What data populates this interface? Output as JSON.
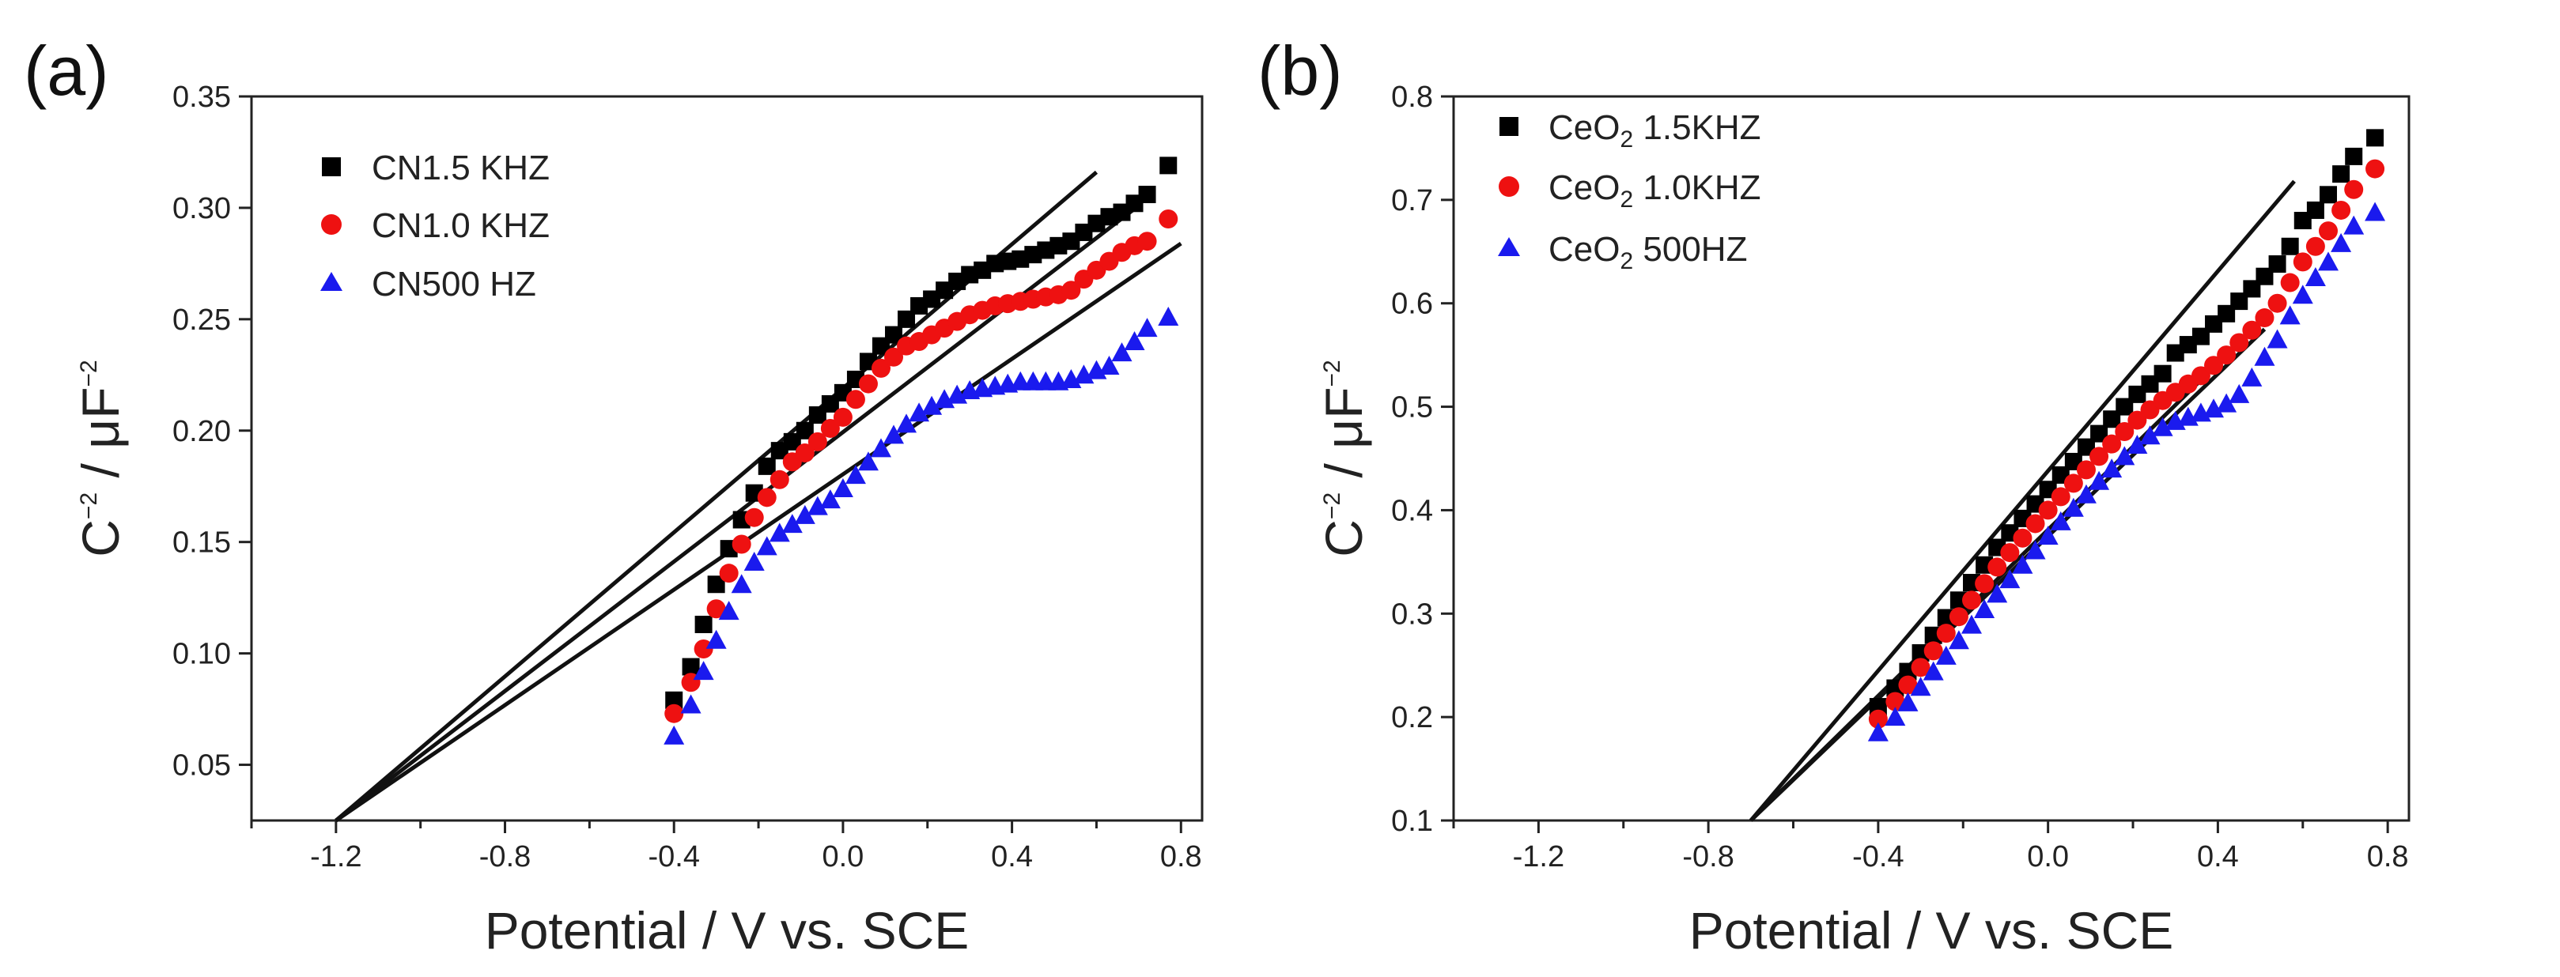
{
  "chart_data": [
    {
      "type": "scatter",
      "panel_label": "(a)",
      "xlabel": "Potential / V vs. SCE",
      "ylabel_main": "C",
      "ylabel_sup": "−2",
      "ylabel_unit": " / μF",
      "ylabel_unit_sup": "−2",
      "xlim": [
        -1.4,
        0.85
      ],
      "ylim": [
        0.025,
        0.35
      ],
      "xticks": [
        -1.2,
        -0.8,
        -0.4,
        0.0,
        0.4,
        0.8
      ],
      "xtick_labels": [
        "-1.2",
        "-0.8",
        "-0.4",
        "0.0",
        "0.4",
        "0.8"
      ],
      "yticks": [
        0.05,
        0.1,
        0.15,
        0.2,
        0.25,
        0.3,
        0.35
      ],
      "ytick_labels": [
        "0.05",
        "0.10",
        "0.15",
        "0.20",
        "0.25",
        "0.30",
        "0.35"
      ],
      "legend_position": "top-left",
      "series": [
        {
          "name": "CN1.5 KHZ",
          "marker": "square",
          "color": "#000000",
          "x": [
            -0.4,
            -0.36,
            -0.33,
            -0.3,
            -0.27,
            -0.24,
            -0.21,
            -0.18,
            -0.15,
            -0.12,
            -0.09,
            -0.06,
            -0.03,
            0.0,
            0.03,
            0.06,
            0.09,
            0.12,
            0.15,
            0.18,
            0.21,
            0.24,
            0.27,
            0.3,
            0.33,
            0.36,
            0.39,
            0.42,
            0.45,
            0.48,
            0.51,
            0.54,
            0.57,
            0.6,
            0.63,
            0.66,
            0.69,
            0.72,
            0.77
          ],
          "y": [
            0.079,
            0.094,
            0.113,
            0.131,
            0.147,
            0.16,
            0.172,
            0.184,
            0.191,
            0.195,
            0.2,
            0.207,
            0.212,
            0.217,
            0.223,
            0.231,
            0.238,
            0.243,
            0.25,
            0.256,
            0.259,
            0.263,
            0.267,
            0.27,
            0.272,
            0.275,
            0.276,
            0.277,
            0.279,
            0.281,
            0.283,
            0.285,
            0.289,
            0.293,
            0.296,
            0.298,
            0.302,
            0.306,
            0.319
          ]
        },
        {
          "name": "CN1.0 KHZ",
          "marker": "circle",
          "color": "#ee1111",
          "x": [
            -0.4,
            -0.36,
            -0.33,
            -0.3,
            -0.27,
            -0.24,
            -0.21,
            -0.18,
            -0.15,
            -0.12,
            -0.09,
            -0.06,
            -0.03,
            0.0,
            0.03,
            0.06,
            0.09,
            0.12,
            0.15,
            0.18,
            0.21,
            0.24,
            0.27,
            0.3,
            0.33,
            0.36,
            0.39,
            0.42,
            0.45,
            0.48,
            0.51,
            0.54,
            0.57,
            0.6,
            0.63,
            0.66,
            0.69,
            0.72,
            0.77
          ],
          "y": [
            0.073,
            0.087,
            0.102,
            0.12,
            0.136,
            0.149,
            0.161,
            0.17,
            0.178,
            0.186,
            0.19,
            0.195,
            0.201,
            0.206,
            0.214,
            0.221,
            0.228,
            0.233,
            0.238,
            0.24,
            0.243,
            0.246,
            0.249,
            0.252,
            0.254,
            0.256,
            0.257,
            0.258,
            0.259,
            0.26,
            0.261,
            0.263,
            0.268,
            0.272,
            0.276,
            0.28,
            0.283,
            0.285,
            0.295
          ]
        },
        {
          "name": "CN500 HZ",
          "marker": "triangle",
          "color": "#1a1aee",
          "x": [
            -0.4,
            -0.36,
            -0.33,
            -0.3,
            -0.27,
            -0.24,
            -0.21,
            -0.18,
            -0.15,
            -0.12,
            -0.09,
            -0.06,
            -0.03,
            0.0,
            0.03,
            0.06,
            0.09,
            0.12,
            0.15,
            0.18,
            0.21,
            0.24,
            0.27,
            0.3,
            0.33,
            0.36,
            0.39,
            0.42,
            0.45,
            0.48,
            0.51,
            0.54,
            0.57,
            0.6,
            0.63,
            0.66,
            0.69,
            0.72,
            0.77
          ],
          "y": [
            0.063,
            0.077,
            0.092,
            0.106,
            0.119,
            0.131,
            0.141,
            0.148,
            0.154,
            0.158,
            0.162,
            0.166,
            0.169,
            0.174,
            0.18,
            0.186,
            0.192,
            0.198,
            0.203,
            0.208,
            0.211,
            0.214,
            0.216,
            0.218,
            0.219,
            0.22,
            0.221,
            0.222,
            0.222,
            0.222,
            0.222,
            0.223,
            0.225,
            0.227,
            0.229,
            0.235,
            0.24,
            0.246,
            0.251
          ]
        }
      ],
      "fit_lines": [
        {
          "x": [
            -1.2,
            0.6
          ],
          "y": [
            0.025,
            0.316
          ]
        },
        {
          "x": [
            -1.2,
            0.7
          ],
          "y": [
            0.025,
            0.301
          ]
        },
        {
          "x": [
            -1.2,
            0.8
          ],
          "y": [
            0.025,
            0.284
          ]
        }
      ]
    },
    {
      "type": "scatter",
      "panel_label": "(b)",
      "xlabel": "Potential / V vs. SCE",
      "ylabel_main": "C",
      "ylabel_sup": "−2",
      "ylabel_unit": " / μF",
      "ylabel_unit_sup": "−2",
      "xlim": [
        -1.4,
        0.85
      ],
      "ylim": [
        0.1,
        0.8
      ],
      "xticks": [
        -1.2,
        -0.8,
        -0.4,
        0.0,
        0.4,
        0.8
      ],
      "xtick_labels": [
        "-1.2",
        "-0.8",
        "-0.4",
        "0.0",
        "0.4",
        "0.8"
      ],
      "yticks": [
        0.1,
        0.2,
        0.3,
        0.4,
        0.5,
        0.6,
        0.7,
        0.8
      ],
      "ytick_labels": [
        "0.1",
        "0.2",
        "0.3",
        "0.4",
        "0.5",
        "0.6",
        "0.7",
        "0.8"
      ],
      "legend_position": "top-left",
      "series": [
        {
          "name_main": "CeO",
          "name_sub": "2",
          "name_rest": " 1.5KHZ",
          "marker": "square",
          "color": "#000000",
          "x": [
            -0.4,
            -0.36,
            -0.33,
            -0.3,
            -0.27,
            -0.24,
            -0.21,
            -0.18,
            -0.15,
            -0.12,
            -0.09,
            -0.06,
            -0.03,
            0.0,
            0.03,
            0.06,
            0.09,
            0.12,
            0.15,
            0.18,
            0.21,
            0.24,
            0.27,
            0.3,
            0.33,
            0.36,
            0.39,
            0.42,
            0.45,
            0.48,
            0.51,
            0.54,
            0.57,
            0.6,
            0.63,
            0.66,
            0.69,
            0.72,
            0.77
          ],
          "y": [
            0.21,
            0.228,
            0.244,
            0.262,
            0.279,
            0.296,
            0.313,
            0.33,
            0.347,
            0.364,
            0.378,
            0.392,
            0.406,
            0.42,
            0.434,
            0.447,
            0.461,
            0.474,
            0.488,
            0.5,
            0.512,
            0.522,
            0.532,
            0.552,
            0.56,
            0.568,
            0.58,
            0.59,
            0.602,
            0.614,
            0.626,
            0.638,
            0.655,
            0.68,
            0.69,
            0.705,
            0.725,
            0.742,
            0.76
          ]
        },
        {
          "name_main": "CeO",
          "name_sub": "2",
          "name_rest": " 1.0KHZ",
          "marker": "circle",
          "color": "#ee1111",
          "x": [
            -0.4,
            -0.36,
            -0.33,
            -0.3,
            -0.27,
            -0.24,
            -0.21,
            -0.18,
            -0.15,
            -0.12,
            -0.09,
            -0.06,
            -0.03,
            0.0,
            0.03,
            0.06,
            0.09,
            0.12,
            0.15,
            0.18,
            0.21,
            0.24,
            0.27,
            0.3,
            0.33,
            0.36,
            0.39,
            0.42,
            0.45,
            0.48,
            0.51,
            0.54,
            0.57,
            0.6,
            0.63,
            0.66,
            0.69,
            0.72,
            0.77
          ],
          "y": [
            0.198,
            0.215,
            0.231,
            0.248,
            0.264,
            0.281,
            0.297,
            0.313,
            0.329,
            0.345,
            0.359,
            0.373,
            0.387,
            0.4,
            0.413,
            0.426,
            0.439,
            0.452,
            0.464,
            0.476,
            0.487,
            0.497,
            0.506,
            0.514,
            0.522,
            0.53,
            0.54,
            0.55,
            0.562,
            0.574,
            0.586,
            0.6,
            0.62,
            0.64,
            0.655,
            0.67,
            0.69,
            0.71,
            0.73
          ]
        },
        {
          "name_main": "CeO",
          "name_sub": "2",
          "name_rest": " 500HZ",
          "marker": "triangle",
          "color": "#1a1aee",
          "x": [
            -0.4,
            -0.36,
            -0.33,
            -0.3,
            -0.27,
            -0.24,
            -0.21,
            -0.18,
            -0.15,
            -0.12,
            -0.09,
            -0.06,
            -0.03,
            0.0,
            0.03,
            0.06,
            0.09,
            0.12,
            0.15,
            0.18,
            0.21,
            0.24,
            0.27,
            0.3,
            0.33,
            0.36,
            0.39,
            0.42,
            0.45,
            0.48,
            0.51,
            0.54,
            0.57,
            0.6,
            0.63,
            0.66,
            0.69,
            0.72,
            0.77
          ],
          "y": [
            0.185,
            0.2,
            0.214,
            0.229,
            0.244,
            0.259,
            0.274,
            0.289,
            0.304,
            0.319,
            0.333,
            0.347,
            0.361,
            0.375,
            0.389,
            0.402,
            0.415,
            0.428,
            0.44,
            0.452,
            0.463,
            0.472,
            0.48,
            0.486,
            0.49,
            0.494,
            0.498,
            0.503,
            0.512,
            0.528,
            0.548,
            0.565,
            0.588,
            0.608,
            0.625,
            0.64,
            0.658,
            0.675,
            0.688
          ]
        }
      ],
      "fit_lines": [
        {
          "x": [
            -0.7,
            0.58
          ],
          "y": [
            0.1,
            0.718
          ]
        },
        {
          "x": [
            -0.7,
            0.52
          ],
          "y": [
            0.1,
            0.59
          ]
        },
        {
          "x": [
            -0.7,
            0.51
          ],
          "y": [
            0.1,
            0.575
          ]
        }
      ]
    }
  ]
}
